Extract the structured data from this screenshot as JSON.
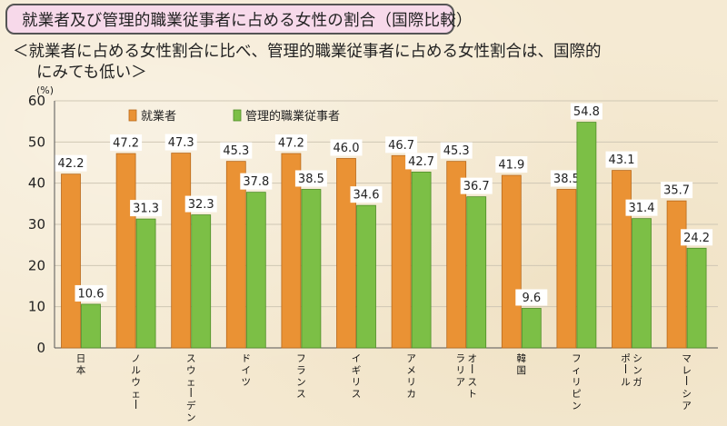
{
  "title": "就業者及び管理的職業従事者に占める女性の割合（国際比較）",
  "subtitle": {
    "line1": "＜就業者に占める女性割合に比べ、管理的職業従事者に占める女性割合は、国際的",
    "line2": "にみても低い＞"
  },
  "colors": {
    "series1": "#ea9234",
    "series2": "#7cbf46",
    "title_bg": "#f7d9ea"
  },
  "chart_data": {
    "type": "bar",
    "unit_label": "(%)",
    "ylim": [
      0,
      60
    ],
    "yticks": [
      0,
      10,
      20,
      30,
      40,
      50,
      60
    ],
    "grid": true,
    "legend_placement": "top-left",
    "categories": [
      "日本",
      "ノルウェー",
      "スウェーデン",
      "ドイツ",
      "フランス",
      "イギリス",
      "アメリカ",
      "オーストラリア",
      "韓国",
      "フィリピン",
      "シンガポール",
      "マレーシア"
    ],
    "category_lines": [
      [
        "日本"
      ],
      [
        "ノルウェー"
      ],
      [
        "スウェーデン"
      ],
      [
        "ドイツ"
      ],
      [
        "フランス"
      ],
      [
        "イギリス"
      ],
      [
        "アメリカ"
      ],
      [
        "オースト",
        "ラリア"
      ],
      [
        "韓国"
      ],
      [
        "フィリピン"
      ],
      [
        "シンガ",
        "ポール"
      ],
      [
        "マレーシア"
      ]
    ],
    "series": [
      {
        "name": "就業者",
        "values": [
          42.2,
          47.2,
          47.3,
          45.3,
          47.2,
          46.0,
          46.7,
          45.3,
          41.9,
          38.5,
          43.1,
          35.7
        ],
        "labels": [
          "42.2",
          "47.2",
          "47.3",
          "45.3",
          "47.2",
          "46.0",
          "46.7",
          "45.3",
          "41.9",
          "38.5",
          "43.1",
          "35.7"
        ]
      },
      {
        "name": "管理的職業従事者",
        "values": [
          10.6,
          31.3,
          32.3,
          37.8,
          38.5,
          34.6,
          42.7,
          36.7,
          9.6,
          54.8,
          31.4,
          24.2
        ],
        "labels": [
          "10.6",
          "31.3",
          "32.3",
          "37.8",
          "38.5",
          "34.6",
          "42.7",
          "36.7",
          "9.6",
          "54.8",
          "31.4",
          "24.2"
        ]
      }
    ]
  }
}
